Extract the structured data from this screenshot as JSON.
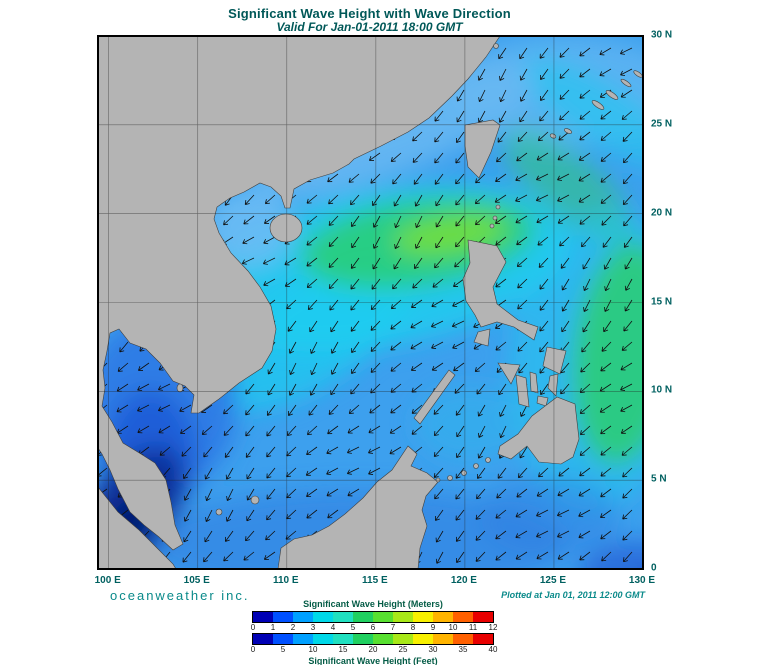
{
  "header": {
    "title": "Significant Wave Height with Wave Direction",
    "subtitle": "Valid For Jan-01-2011 18:00 GMT"
  },
  "branding": "oceanweather inc.",
  "plotted_at": "Plotted at Jan 01, 2011 12:00 GMT",
  "axes": {
    "lon_ticks": [
      {
        "label": "100 E",
        "deg": 100
      },
      {
        "label": "105 E",
        "deg": 105
      },
      {
        "label": "110 E",
        "deg": 110
      },
      {
        "label": "115 E",
        "deg": 115
      },
      {
        "label": "120 E",
        "deg": 120
      },
      {
        "label": "125 E",
        "deg": 125
      },
      {
        "label": "130 E",
        "deg": 130
      }
    ],
    "lat_ticks": [
      {
        "label": "30 N",
        "deg": 30
      },
      {
        "label": "25 N",
        "deg": 25
      },
      {
        "label": "20 N",
        "deg": 20
      },
      {
        "label": "15 N",
        "deg": 15
      },
      {
        "label": "10 N",
        "deg": 10
      },
      {
        "label": "5 N",
        "deg": 5
      },
      {
        "label": "0",
        "deg": 0
      }
    ]
  },
  "legend": {
    "meters_title": "Significant Wave Height (Meters)",
    "feet_title": "Significant Wave Height (Feet)",
    "meters_ticks": [
      0,
      1,
      2,
      3,
      4,
      5,
      6,
      7,
      8,
      9,
      10,
      11,
      12
    ],
    "feet_ticks": [
      0,
      5,
      10,
      15,
      20,
      25,
      30,
      35,
      40
    ],
    "colors": [
      "#0000b4",
      "#0050ff",
      "#00a0ff",
      "#00d8e8",
      "#20e0c0",
      "#20d060",
      "#58e030",
      "#a8e818",
      "#f8f000",
      "#ffb400",
      "#ff6000",
      "#e80000"
    ]
  },
  "map": {
    "projection": {
      "lon_min": 99.4,
      "lon_max": 130,
      "lat_min": 0,
      "lat_max": 30
    },
    "arrows": {
      "spacing": 21,
      "length": 13,
      "svg_rotation_deg": 135,
      "color": "#101010",
      "direction": "northeast-to-southwest"
    }
  },
  "colors": {
    "title_text": "#005858",
    "axis_text": "#006060",
    "branding_text": "#0a8a8a",
    "legend_text": "#045c46",
    "land": "#b4b4b4",
    "ocean_base": "#3da0ee"
  }
}
